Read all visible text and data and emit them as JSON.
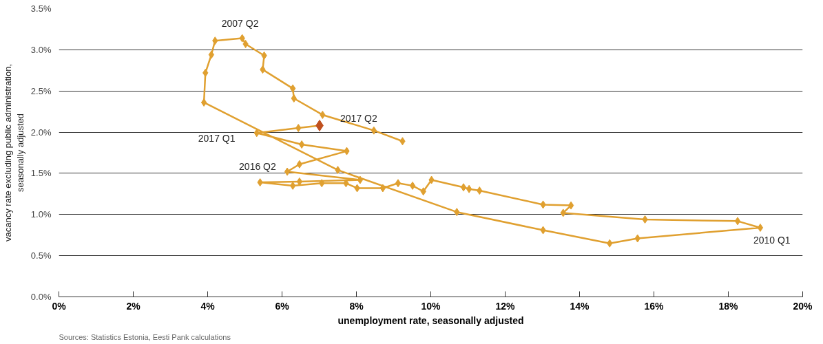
{
  "chart_data": {
    "type": "line",
    "xlabel": "unemployment rate, seasonally adjusted",
    "ylabel": "vacancy rate excluding public administration,\nseasonally adjusted",
    "xlim": [
      0,
      20
    ],
    "ylim": [
      0,
      3.5
    ],
    "xticks": [
      {
        "value": 0,
        "label": "0%"
      },
      {
        "value": 2,
        "label": "2%"
      },
      {
        "value": 4,
        "label": "4%"
      },
      {
        "value": 6,
        "label": "6%"
      },
      {
        "value": 8,
        "label": "8%"
      },
      {
        "value": 10,
        "label": "10%"
      },
      {
        "value": 12,
        "label": "12%"
      },
      {
        "value": 14,
        "label": "14%"
      },
      {
        "value": 16,
        "label": "16%"
      },
      {
        "value": 18,
        "label": "18%"
      },
      {
        "value": 20,
        "label": "20%"
      }
    ],
    "yticks": [
      {
        "value": 0,
        "label": "0.0%"
      },
      {
        "value": 0.5,
        "label": "0.5%"
      },
      {
        "value": 1,
        "label": "1.0%"
      },
      {
        "value": 1.5,
        "label": "1.5%"
      },
      {
        "value": 2,
        "label": "2.0%"
      },
      {
        "value": 2.5,
        "label": "2.5%"
      },
      {
        "value": 3,
        "label": "3.0%"
      },
      {
        "value": 3.5,
        "label": "3.5%"
      }
    ],
    "grid": "y",
    "marker": "diamond",
    "line_style": "solid",
    "series": [
      {
        "color": "#e0a030",
        "colors": [
          "#e0a030",
          "#e0a030",
          "#e0a030",
          "#e0a030",
          "#e0a030",
          "#e0a030",
          "#e0a030",
          "#e0a030",
          "#e0a030",
          "#e0a030",
          "#e0a030",
          "#e0a030",
          "#e0a030",
          "#e0a030",
          "#e0a030",
          "#e0a030",
          "#e0a030",
          "#e0a030",
          "#e0a030",
          "#e0a030",
          "#e0a030",
          "#e0a030",
          "#e0a030",
          "#e0a030",
          "#e0a030",
          "#e0a030",
          "#e0a030",
          "#e0a030",
          "#e0a030",
          "#e0a030",
          "#e0a030",
          "#e0a030",
          "#e0a030",
          "#e0a030",
          "#e0a030",
          "#e0a030",
          "#e0a030",
          "#e0a030",
          "#e0a030",
          "#e0a030",
          "#e0a030",
          "#e0a030",
          "#e0a030",
          "#e0a030",
          "#e0a030",
          "#c0501e"
        ],
        "x": [
          9.24,
          8.47,
          7.09,
          6.32,
          6.29,
          5.48,
          5.52,
          5.02,
          4.93,
          4.2,
          4.1,
          3.94,
          3.9,
          7.5,
          10.7,
          13.02,
          14.81,
          15.56,
          18.86,
          18.25,
          15.76,
          13.56,
          13.77,
          13.02,
          11.31,
          11.03,
          10.88,
          10.02,
          9.8,
          9.51,
          9.12,
          8.71,
          8.02,
          7.72,
          7.07,
          6.29,
          5.41,
          6.47,
          8.1,
          6.14,
          6.47,
          7.74,
          6.53,
          5.32,
          6.44,
          7.01
        ],
        "values": [
          1.89,
          2.02,
          2.21,
          2.41,
          2.53,
          2.76,
          2.93,
          3.07,
          3.14,
          3.11,
          2.94,
          2.72,
          2.36,
          1.54,
          1.03,
          0.81,
          0.65,
          0.71,
          0.84,
          0.92,
          0.94,
          1.02,
          1.11,
          1.12,
          1.29,
          1.31,
          1.33,
          1.42,
          1.28,
          1.35,
          1.38,
          1.32,
          1.32,
          1.38,
          1.38,
          1.35,
          1.39,
          1.4,
          1.42,
          1.52,
          1.61,
          1.77,
          1.85,
          1.99,
          2.05,
          2.08
        ]
      }
    ],
    "annotations": [
      {
        "text": "2007 Q2",
        "x": 4.93,
        "y": 3.14
      },
      {
        "text": "2010 Q1",
        "x": 18.86,
        "y": 0.84
      },
      {
        "text": "2016 Q2",
        "x": 6.14,
        "y": 1.52
      },
      {
        "text": "2017 Q1",
        "x": 5.32,
        "y": 1.99
      },
      {
        "text": "2017 Q2",
        "x": 7.01,
        "y": 2.08
      },
      "Sources: Statistics Estonia, Eesti Pank calculations"
    ]
  }
}
